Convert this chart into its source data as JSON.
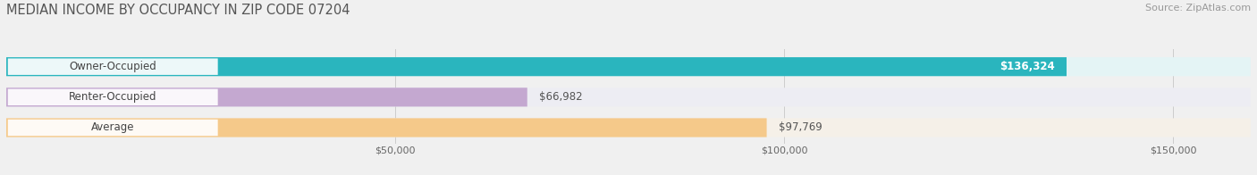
{
  "title": "MEDIAN INCOME BY OCCUPANCY IN ZIP CODE 07204",
  "source": "Source: ZipAtlas.com",
  "categories": [
    "Owner-Occupied",
    "Renter-Occupied",
    "Average"
  ],
  "values": [
    136324,
    66982,
    97769
  ],
  "bar_colors": [
    "#2ab5be",
    "#c4a8d0",
    "#f5c98a"
  ],
  "bar_bg_colors": [
    "#e4f4f5",
    "#ededf3",
    "#f5f0e8"
  ],
  "value_labels": [
    "$136,324",
    "$66,982",
    "$97,769"
  ],
  "value_label_colors": [
    "#ffffff",
    "#555555",
    "#555555"
  ],
  "value_label_inside": [
    true,
    false,
    false
  ],
  "xlim": [
    0,
    160000
  ],
  "xticks": [
    50000,
    100000,
    150000
  ],
  "xticklabels": [
    "$50,000",
    "$100,000",
    "$150,000"
  ],
  "background_color": "#f0f0f0",
  "bar_height": 0.62,
  "title_fontsize": 10.5,
  "source_fontsize": 8,
  "label_fontsize": 8.5,
  "value_fontsize": 8.5,
  "tick_fontsize": 8
}
